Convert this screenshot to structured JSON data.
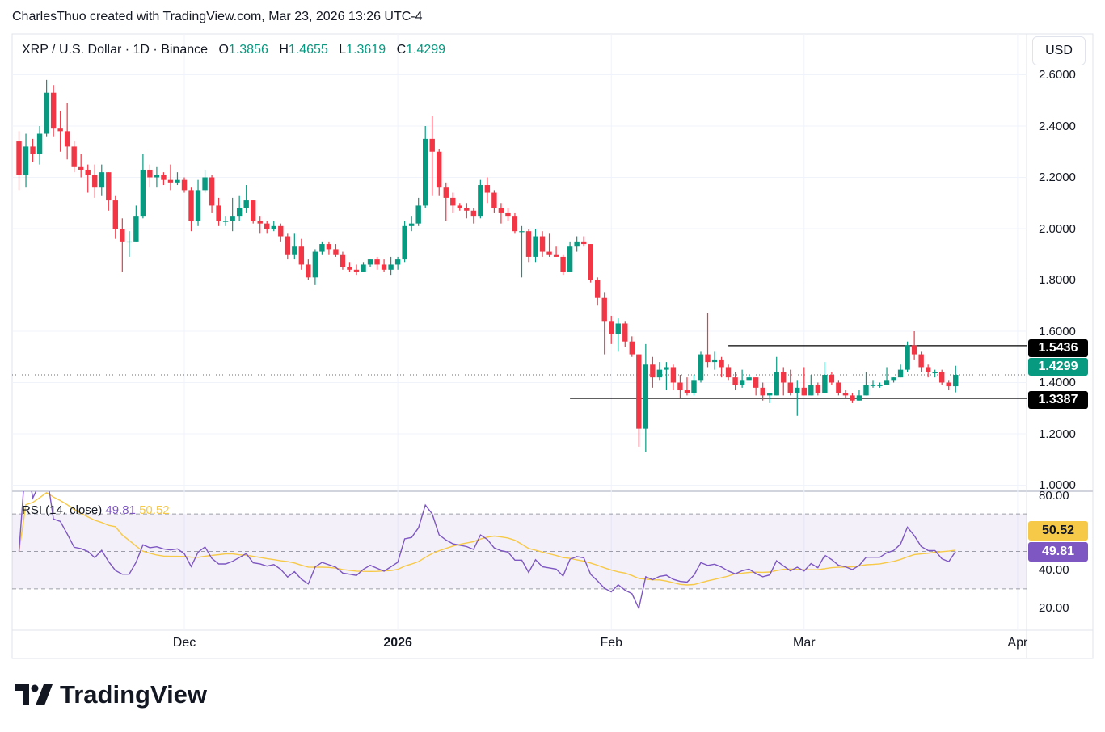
{
  "header": {
    "credit": "CharlesThuo created with TradingView.com, Mar 23, 2026 13:26 UTC-4"
  },
  "legend": {
    "symbol": "XRP / U.S. Dollar · 1D · Binance",
    "o_label": "O",
    "o": "1.3856",
    "h_label": "H",
    "h": "1.4655",
    "l_label": "L",
    "l": "1.3619",
    "c_label": "C",
    "c": "1.4299"
  },
  "currency_button": "USD",
  "colors": {
    "up": "#089981",
    "down": "#f23645",
    "rsi": "#7e57c2",
    "rsi_ma": "#f7c948",
    "level_line": "#000000"
  },
  "logo": {
    "text": "TradingView",
    "icon": "tradingview-logo-icon"
  },
  "chart_data": {
    "type": "candlestick",
    "price_axis": {
      "ticks": [
        "1.0000",
        "1.2000",
        "1.4000",
        "1.6000",
        "1.8000",
        "2.0000",
        "2.2000",
        "2.4000",
        "2.6000"
      ],
      "range": [
        0.98,
        2.62
      ]
    },
    "time_axis": {
      "ticks": [
        {
          "label": "Dec",
          "date": "2025-12-01"
        },
        {
          "label": "2026",
          "date": "2026-01-01"
        },
        {
          "label": "Feb",
          "date": "2026-02-01"
        },
        {
          "label": "Mar",
          "date": "2026-03-01"
        },
        {
          "label": "Apr",
          "date": "2026-04-01"
        }
      ]
    },
    "grid": true,
    "horizontal_levels": [
      {
        "value": "1.5436",
        "from": "2026-02-18"
      },
      {
        "value": "1.3387",
        "from": "2026-01-26"
      }
    ],
    "last_price": "1.4299",
    "candles": [
      [
        "2025-11-07",
        2.34,
        2.38,
        2.15,
        2.21
      ],
      [
        "2025-11-08",
        2.21,
        2.37,
        2.16,
        2.32
      ],
      [
        "2025-11-09",
        2.32,
        2.35,
        2.26,
        2.29
      ],
      [
        "2025-11-10",
        2.29,
        2.4,
        2.25,
        2.37
      ],
      [
        "2025-11-11",
        2.37,
        2.58,
        2.36,
        2.53
      ],
      [
        "2025-11-12",
        2.53,
        2.56,
        2.36,
        2.39
      ],
      [
        "2025-11-13",
        2.39,
        2.46,
        2.3,
        2.38
      ],
      [
        "2025-11-14",
        2.38,
        2.49,
        2.27,
        2.32
      ],
      [
        "2025-11-15",
        2.32,
        2.34,
        2.22,
        2.24
      ],
      [
        "2025-11-16",
        2.24,
        2.29,
        2.2,
        2.23
      ],
      [
        "2025-11-17",
        2.23,
        2.25,
        2.14,
        2.21
      ],
      [
        "2025-11-18",
        2.21,
        2.25,
        2.12,
        2.16
      ],
      [
        "2025-11-19",
        2.16,
        2.25,
        2.13,
        2.22
      ],
      [
        "2025-11-20",
        2.22,
        2.22,
        2.07,
        2.11
      ],
      [
        "2025-11-21",
        2.11,
        2.13,
        1.96,
        2.0
      ],
      [
        "2025-11-22",
        2.0,
        2.04,
        1.83,
        1.95
      ],
      [
        "2025-11-23",
        1.95,
        1.99,
        1.89,
        1.95
      ],
      [
        "2025-11-24",
        1.95,
        2.09,
        1.95,
        2.05
      ],
      [
        "2025-11-25",
        2.05,
        2.29,
        2.04,
        2.23
      ],
      [
        "2025-11-26",
        2.23,
        2.25,
        2.16,
        2.2
      ],
      [
        "2025-11-27",
        2.2,
        2.24,
        2.16,
        2.21
      ],
      [
        "2025-11-28",
        2.21,
        2.22,
        2.17,
        2.19
      ],
      [
        "2025-11-29",
        2.19,
        2.25,
        2.15,
        2.18
      ],
      [
        "2025-11-30",
        2.18,
        2.22,
        2.17,
        2.19
      ],
      [
        "2025-12-01",
        2.19,
        2.2,
        2.14,
        2.15
      ],
      [
        "2025-12-02",
        2.15,
        2.16,
        1.99,
        2.03
      ],
      [
        "2025-12-03",
        2.03,
        2.19,
        2.01,
        2.15
      ],
      [
        "2025-12-04",
        2.15,
        2.23,
        2.14,
        2.2
      ],
      [
        "2025-12-05",
        2.2,
        2.21,
        2.06,
        2.09
      ],
      [
        "2025-12-06",
        2.09,
        2.12,
        2.01,
        2.03
      ],
      [
        "2025-12-07",
        2.03,
        2.05,
        2.01,
        2.03
      ],
      [
        "2025-12-08",
        2.03,
        2.12,
        1.99,
        2.05
      ],
      [
        "2025-12-09",
        2.05,
        2.13,
        2.03,
        2.08
      ],
      [
        "2025-12-10",
        2.08,
        2.17,
        2.06,
        2.11
      ],
      [
        "2025-12-11",
        2.11,
        2.11,
        2.02,
        2.03
      ],
      [
        "2025-12-12",
        2.03,
        2.05,
        1.98,
        2.02
      ],
      [
        "2025-12-13",
        2.02,
        2.03,
        1.98,
        2.0
      ],
      [
        "2025-12-14",
        2.0,
        2.03,
        1.99,
        2.01
      ],
      [
        "2025-12-15",
        2.01,
        2.02,
        1.95,
        1.97
      ],
      [
        "2025-12-16",
        1.97,
        1.98,
        1.88,
        1.9
      ],
      [
        "2025-12-17",
        1.9,
        1.98,
        1.88,
        1.93
      ],
      [
        "2025-12-18",
        1.93,
        1.96,
        1.84,
        1.86
      ],
      [
        "2025-12-19",
        1.86,
        1.88,
        1.8,
        1.81
      ],
      [
        "2025-12-20",
        1.81,
        1.92,
        1.78,
        1.91
      ],
      [
        "2025-12-21",
        1.91,
        1.95,
        1.9,
        1.94
      ],
      [
        "2025-12-22",
        1.94,
        1.95,
        1.9,
        1.92
      ],
      [
        "2025-12-23",
        1.92,
        1.94,
        1.89,
        1.9
      ],
      [
        "2025-12-24",
        1.9,
        1.91,
        1.84,
        1.85
      ],
      [
        "2025-12-25",
        1.85,
        1.87,
        1.83,
        1.84
      ],
      [
        "2025-12-26",
        1.84,
        1.86,
        1.82,
        1.83
      ],
      [
        "2025-12-27",
        1.83,
        1.87,
        1.83,
        1.86
      ],
      [
        "2025-12-28",
        1.86,
        1.88,
        1.85,
        1.88
      ],
      [
        "2025-12-29",
        1.88,
        1.89,
        1.84,
        1.86
      ],
      [
        "2025-12-30",
        1.86,
        1.88,
        1.83,
        1.84
      ],
      [
        "2025-12-31",
        1.84,
        1.89,
        1.82,
        1.86
      ],
      [
        "2026-01-01",
        1.86,
        1.89,
        1.84,
        1.88
      ],
      [
        "2026-01-02",
        1.88,
        2.03,
        1.87,
        2.01
      ],
      [
        "2026-01-03",
        2.01,
        2.05,
        1.99,
        2.02
      ],
      [
        "2026-01-04",
        2.02,
        2.12,
        2.01,
        2.09
      ],
      [
        "2026-01-05",
        2.09,
        2.4,
        2.08,
        2.35
      ],
      [
        "2026-01-06",
        2.35,
        2.44,
        2.13,
        2.3
      ],
      [
        "2026-01-07",
        2.3,
        2.31,
        2.13,
        2.16
      ],
      [
        "2026-01-08",
        2.16,
        2.18,
        2.03,
        2.12
      ],
      [
        "2026-01-09",
        2.12,
        2.14,
        2.06,
        2.09
      ],
      [
        "2026-01-10",
        2.09,
        2.1,
        2.07,
        2.08
      ],
      [
        "2026-01-11",
        2.08,
        2.1,
        2.04,
        2.07
      ],
      [
        "2026-01-12",
        2.07,
        2.08,
        2.02,
        2.05
      ],
      [
        "2026-01-13",
        2.05,
        2.19,
        2.04,
        2.17
      ],
      [
        "2026-01-14",
        2.17,
        2.2,
        2.1,
        2.14
      ],
      [
        "2026-01-15",
        2.14,
        2.15,
        2.06,
        2.08
      ],
      [
        "2026-01-16",
        2.08,
        2.1,
        2.02,
        2.06
      ],
      [
        "2026-01-17",
        2.06,
        2.08,
        2.03,
        2.05
      ],
      [
        "2026-01-18",
        2.05,
        2.06,
        1.98,
        1.99
      ],
      [
        "2026-01-19",
        1.99,
        2.01,
        1.81,
        1.99
      ],
      [
        "2026-01-20",
        1.99,
        2.0,
        1.87,
        1.89
      ],
      [
        "2026-01-21",
        1.89,
        2.0,
        1.87,
        1.97
      ],
      [
        "2026-01-22",
        1.97,
        1.99,
        1.89,
        1.91
      ],
      [
        "2026-01-23",
        1.91,
        1.98,
        1.89,
        1.9
      ],
      [
        "2026-01-24",
        1.9,
        1.93,
        1.89,
        1.89
      ],
      [
        "2026-01-25",
        1.89,
        1.9,
        1.82,
        1.83
      ],
      [
        "2026-01-26",
        1.83,
        1.95,
        1.83,
        1.93
      ],
      [
        "2026-01-27",
        1.93,
        1.97,
        1.91,
        1.95
      ],
      [
        "2026-01-28",
        1.95,
        1.97,
        1.93,
        1.94
      ],
      [
        "2026-01-29",
        1.94,
        1.94,
        1.79,
        1.8
      ],
      [
        "2026-01-30",
        1.8,
        1.81,
        1.7,
        1.73
      ],
      [
        "2026-01-31",
        1.73,
        1.75,
        1.51,
        1.64
      ],
      [
        "2026-02-01",
        1.64,
        1.66,
        1.55,
        1.59
      ],
      [
        "2026-02-02",
        1.59,
        1.65,
        1.52,
        1.63
      ],
      [
        "2026-02-03",
        1.63,
        1.64,
        1.54,
        1.56
      ],
      [
        "2026-02-04",
        1.56,
        1.58,
        1.5,
        1.51
      ],
      [
        "2026-02-05",
        1.51,
        1.51,
        1.15,
        1.22
      ],
      [
        "2026-02-06",
        1.22,
        1.55,
        1.13,
        1.47
      ],
      [
        "2026-02-07",
        1.47,
        1.5,
        1.38,
        1.42
      ],
      [
        "2026-02-08",
        1.42,
        1.48,
        1.41,
        1.45
      ],
      [
        "2026-02-09",
        1.45,
        1.48,
        1.37,
        1.46
      ],
      [
        "2026-02-10",
        1.46,
        1.47,
        1.37,
        1.4
      ],
      [
        "2026-02-11",
        1.4,
        1.43,
        1.34,
        1.37
      ],
      [
        "2026-02-12",
        1.37,
        1.42,
        1.35,
        1.36
      ],
      [
        "2026-02-13",
        1.36,
        1.43,
        1.35,
        1.41
      ],
      [
        "2026-02-14",
        1.41,
        1.52,
        1.4,
        1.51
      ],
      [
        "2026-02-15",
        1.51,
        1.67,
        1.46,
        1.48
      ],
      [
        "2026-02-16",
        1.48,
        1.52,
        1.45,
        1.49
      ],
      [
        "2026-02-17",
        1.49,
        1.5,
        1.42,
        1.46
      ],
      [
        "2026-02-18",
        1.46,
        1.47,
        1.41,
        1.42
      ],
      [
        "2026-02-19",
        1.42,
        1.44,
        1.37,
        1.39
      ],
      [
        "2026-02-20",
        1.39,
        1.45,
        1.38,
        1.41
      ],
      [
        "2026-02-21",
        1.41,
        1.43,
        1.41,
        1.42
      ],
      [
        "2026-02-22",
        1.42,
        1.42,
        1.35,
        1.38
      ],
      [
        "2026-02-23",
        1.38,
        1.4,
        1.33,
        1.35
      ],
      [
        "2026-02-24",
        1.35,
        1.36,
        1.32,
        1.36
      ],
      [
        "2026-02-25",
        1.35,
        1.5,
        1.35,
        1.44
      ],
      [
        "2026-02-26",
        1.44,
        1.46,
        1.35,
        1.4
      ],
      [
        "2026-02-27",
        1.4,
        1.45,
        1.35,
        1.36
      ],
      [
        "2026-02-28",
        1.36,
        1.41,
        1.27,
        1.38
      ],
      [
        "2026-03-01",
        1.38,
        1.46,
        1.35,
        1.35
      ],
      [
        "2026-03-02",
        1.35,
        1.43,
        1.35,
        1.39
      ],
      [
        "2026-03-03",
        1.39,
        1.4,
        1.35,
        1.36
      ],
      [
        "2026-03-04",
        1.36,
        1.48,
        1.36,
        1.43
      ],
      [
        "2026-03-05",
        1.43,
        1.44,
        1.39,
        1.4
      ],
      [
        "2026-03-06",
        1.4,
        1.41,
        1.35,
        1.36
      ],
      [
        "2026-03-07",
        1.36,
        1.37,
        1.34,
        1.35
      ],
      [
        "2026-03-08",
        1.35,
        1.36,
        1.32,
        1.33
      ],
      [
        "2026-03-09",
        1.33,
        1.37,
        1.33,
        1.35
      ],
      [
        "2026-03-10",
        1.35,
        1.44,
        1.35,
        1.39
      ],
      [
        "2026-03-11",
        1.39,
        1.41,
        1.38,
        1.39
      ],
      [
        "2026-03-12",
        1.39,
        1.4,
        1.38,
        1.39
      ],
      [
        "2026-03-13",
        1.39,
        1.46,
        1.39,
        1.41
      ],
      [
        "2026-03-14",
        1.41,
        1.42,
        1.4,
        1.42
      ],
      [
        "2026-03-15",
        1.42,
        1.47,
        1.42,
        1.45
      ],
      [
        "2026-03-16",
        1.45,
        1.56,
        1.44,
        1.545
      ],
      [
        "2026-03-17",
        1.545,
        1.6,
        1.49,
        1.51
      ],
      [
        "2026-03-18",
        1.51,
        1.52,
        1.44,
        1.46
      ],
      [
        "2026-03-19",
        1.46,
        1.47,
        1.42,
        1.44
      ],
      [
        "2026-03-20",
        1.44,
        1.45,
        1.42,
        1.44
      ],
      [
        "2026-03-21",
        1.44,
        1.45,
        1.39,
        1.4
      ],
      [
        "2026-03-22",
        1.4,
        1.41,
        1.37,
        1.3856
      ],
      [
        "2026-03-23",
        1.3856,
        1.4655,
        1.3619,
        1.4299
      ]
    ],
    "rsi": {
      "title": "RSI (14, close)",
      "value": "49.81",
      "ma_value": "50.52",
      "axis_ticks": [
        "20.00",
        "40.00",
        "80.00"
      ],
      "range": [
        13,
        82
      ],
      "upper_band": 70,
      "middle_band": 50,
      "lower_band": 30
    }
  }
}
